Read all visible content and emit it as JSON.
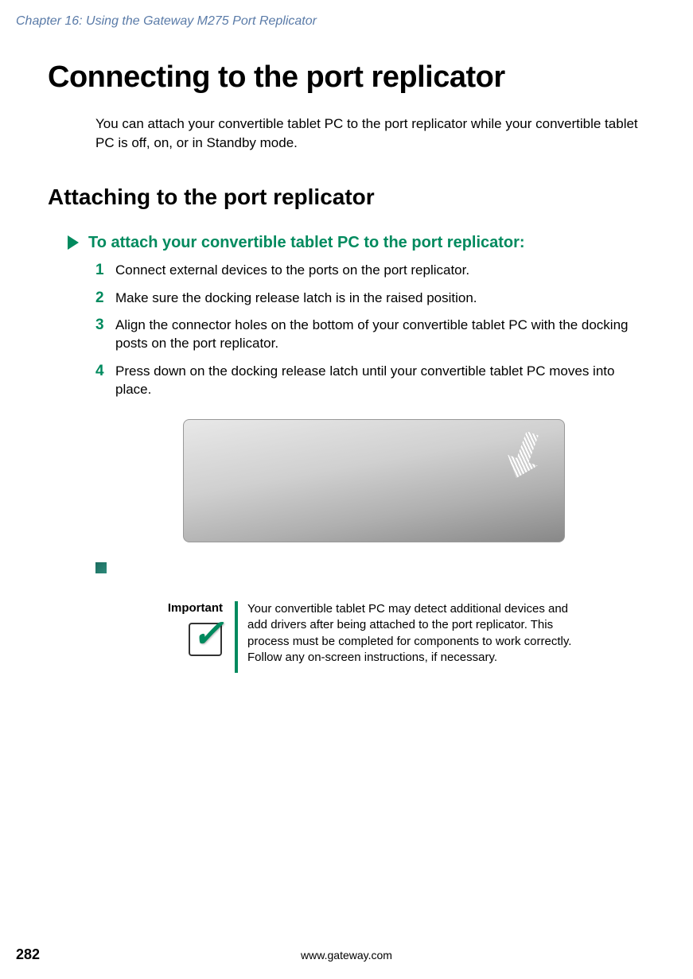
{
  "header": {
    "chapter_text": "Chapter 16: Using the Gateway M275 Port Replicator"
  },
  "main_title": "Connecting to the port replicator",
  "intro": "You can attach your convertible tablet PC to the port replicator while your convertible tablet PC is off, on, or in Standby mode.",
  "section_title": "Attaching to the port replicator",
  "instruction_title": "To attach your convertible tablet PC to the port replicator:",
  "steps": [
    {
      "num": "1",
      "text": "Connect external devices to the ports on the port replicator."
    },
    {
      "num": "2",
      "text": "Make sure the docking release latch is in the raised position."
    },
    {
      "num": "3",
      "text": "Align the connector holes on the bottom of your convertible tablet PC with the docking posts on the port replicator."
    },
    {
      "num": "4",
      "text": "Press down on the docking release latch until your convertible tablet PC moves into place."
    }
  ],
  "important": {
    "label": "Important",
    "text": "Your convertible tablet PC may detect additional devices and add drivers after being attached to the port replicator. This process must be completed for components to work correctly. Follow any on-screen instructions, if necessary."
  },
  "footer": {
    "page_number": "282",
    "url": "www.gateway.com"
  },
  "colors": {
    "header_color": "#5a7ba8",
    "accent_green": "#008a5e",
    "text_black": "#000000",
    "background": "#ffffff"
  }
}
